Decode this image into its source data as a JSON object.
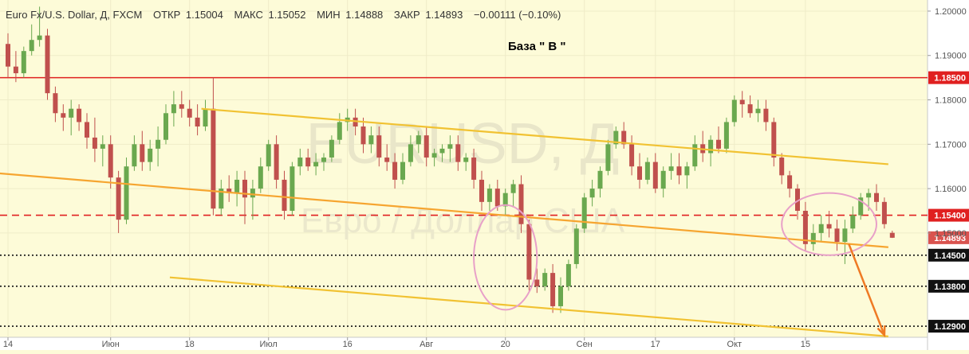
{
  "header": {
    "symbol": "Euro Fx/U.S. Dollar, Д, FXCM",
    "open_label": "ОТКР",
    "open": "1.15004",
    "high_label": "МАКС",
    "high": "1.15052",
    "low_label": "МИН",
    "low": "1.14888",
    "close_label": "ЗАКР",
    "close": "1.14893",
    "change": "−0.00111 (−0.10%)"
  },
  "annotation": "База \" В \"",
  "watermark": {
    "main": "EURUSD, Д",
    "sub": "Евро / Доллар США"
  },
  "colors": {
    "up": "#6aa84f",
    "down": "#c0504d",
    "resistance": "#e02020",
    "support": "#111111",
    "channel": "#f1c232",
    "trend": "#f6a530",
    "circle": "#e8a0c8",
    "arrow": "#ef7a24",
    "price_tag": "#d9534f"
  },
  "chart_data": {
    "type": "candlestick",
    "symbol": "Euro Fx/U.S. Dollar",
    "interval": "Д",
    "source": "FXCM",
    "ylim": [
      1.1265,
      1.2025
    ],
    "y_ticks": [
      1.2,
      1.19,
      1.18,
      1.17,
      1.16,
      1.15
    ],
    "y_tick_labels": [
      "1.20000",
      "1.19000",
      "1.18000",
      "1.17000",
      "1.16000",
      "1.15000"
    ],
    "x_tick_labels": [
      "14",
      "Июн",
      "18",
      "Июл",
      "16",
      "Авг",
      "20",
      "Сен",
      "17",
      "Окт",
      "15"
    ],
    "x_tick_index": [
      0,
      13,
      23,
      33,
      43,
      53,
      63,
      73,
      82,
      92,
      101
    ],
    "candles": [
      [
        1.1926,
        1.195,
        1.185,
        1.1875
      ],
      [
        1.1875,
        1.191,
        1.184,
        1.186
      ],
      [
        1.186,
        1.192,
        1.185,
        1.191
      ],
      [
        1.191,
        1.197,
        1.19,
        1.1935
      ],
      [
        1.1935,
        1.201,
        1.192,
        1.1945
      ],
      [
        1.1945,
        1.196,
        1.18,
        1.1815
      ],
      [
        1.1815,
        1.183,
        1.175,
        1.177
      ],
      [
        1.177,
        1.179,
        1.173,
        1.176
      ],
      [
        1.176,
        1.18,
        1.172,
        1.178
      ],
      [
        1.178,
        1.179,
        1.173,
        1.175
      ],
      [
        1.175,
        1.177,
        1.169,
        1.1715
      ],
      [
        1.1715,
        1.176,
        1.166,
        1.169
      ],
      [
        1.169,
        1.172,
        1.165,
        1.17
      ],
      [
        1.17,
        1.172,
        1.16,
        1.1625
      ],
      [
        1.1625,
        1.164,
        1.15,
        1.153
      ],
      [
        1.153,
        1.167,
        1.152,
        1.165
      ],
      [
        1.165,
        1.172,
        1.164,
        1.17
      ],
      [
        1.17,
        1.173,
        1.164,
        1.166
      ],
      [
        1.166,
        1.171,
        1.164,
        1.169
      ],
      [
        1.169,
        1.174,
        1.165,
        1.171
      ],
      [
        1.171,
        1.179,
        1.17,
        1.177
      ],
      [
        1.177,
        1.182,
        1.174,
        1.179
      ],
      [
        1.179,
        1.182,
        1.176,
        1.178
      ],
      [
        1.178,
        1.18,
        1.174,
        1.176
      ],
      [
        1.176,
        1.179,
        1.172,
        1.174
      ],
      [
        1.174,
        1.18,
        1.173,
        1.178
      ],
      [
        1.178,
        1.185,
        1.154,
        1.1555
      ],
      [
        1.1555,
        1.162,
        1.154,
        1.16
      ],
      [
        1.16,
        1.163,
        1.157,
        1.159
      ],
      [
        1.159,
        1.164,
        1.156,
        1.162
      ],
      [
        1.162,
        1.164,
        1.152,
        1.158
      ],
      [
        1.158,
        1.162,
        1.153,
        1.16
      ],
      [
        1.16,
        1.167,
        1.159,
        1.165
      ],
      [
        1.165,
        1.171,
        1.164,
        1.17
      ],
      [
        1.17,
        1.172,
        1.16,
        1.162
      ],
      [
        1.162,
        1.164,
        1.153,
        1.155
      ],
      [
        1.155,
        1.166,
        1.154,
        1.165
      ],
      [
        1.165,
        1.169,
        1.163,
        1.167
      ],
      [
        1.167,
        1.169,
        1.164,
        1.165
      ],
      [
        1.165,
        1.168,
        1.163,
        1.166
      ],
      [
        1.166,
        1.168,
        1.164,
        1.167
      ],
      [
        1.167,
        1.172,
        1.166,
        1.171
      ],
      [
        1.171,
        1.177,
        1.17,
        1.175
      ],
      [
        1.175,
        1.178,
        1.173,
        1.176
      ],
      [
        1.176,
        1.178,
        1.172,
        1.174
      ],
      [
        1.174,
        1.176,
        1.168,
        1.17
      ],
      [
        1.17,
        1.174,
        1.168,
        1.172
      ],
      [
        1.172,
        1.174,
        1.165,
        1.167
      ],
      [
        1.167,
        1.17,
        1.164,
        1.166
      ],
      [
        1.166,
        1.168,
        1.16,
        1.162
      ],
      [
        1.162,
        1.168,
        1.161,
        1.166
      ],
      [
        1.166,
        1.172,
        1.165,
        1.17
      ],
      [
        1.17,
        1.173,
        1.168,
        1.172
      ],
      [
        1.172,
        1.174,
        1.165,
        1.167
      ],
      [
        1.167,
        1.169,
        1.165,
        1.168
      ],
      [
        1.168,
        1.17,
        1.166,
        1.169
      ],
      [
        1.169,
        1.172,
        1.166,
        1.17
      ],
      [
        1.17,
        1.172,
        1.164,
        1.166
      ],
      [
        1.166,
        1.168,
        1.164,
        1.167
      ],
      [
        1.167,
        1.169,
        1.16,
        1.162
      ],
      [
        1.162,
        1.164,
        1.155,
        1.157
      ],
      [
        1.157,
        1.161,
        1.155,
        1.16
      ],
      [
        1.16,
        1.162,
        1.155,
        1.156
      ],
      [
        1.156,
        1.16,
        1.154,
        1.159
      ],
      [
        1.159,
        1.162,
        1.156,
        1.161
      ],
      [
        1.161,
        1.163,
        1.15,
        1.152
      ],
      [
        1.152,
        1.153,
        1.137,
        1.1395
      ],
      [
        1.1395,
        1.142,
        1.1365,
        1.138
      ],
      [
        1.138,
        1.142,
        1.137,
        1.141
      ],
      [
        1.141,
        1.143,
        1.132,
        1.1335
      ],
      [
        1.1335,
        1.14,
        1.132,
        1.138
      ],
      [
        1.138,
        1.144,
        1.137,
        1.143
      ],
      [
        1.143,
        1.152,
        1.142,
        1.151
      ],
      [
        1.151,
        1.159,
        1.15,
        1.158
      ],
      [
        1.158,
        1.162,
        1.156,
        1.16
      ],
      [
        1.16,
        1.165,
        1.158,
        1.164
      ],
      [
        1.164,
        1.171,
        1.163,
        1.17
      ],
      [
        1.17,
        1.174,
        1.169,
        1.173
      ],
      [
        1.173,
        1.175,
        1.169,
        1.17
      ],
      [
        1.17,
        1.172,
        1.163,
        1.165
      ],
      [
        1.165,
        1.168,
        1.16,
        1.162
      ],
      [
        1.162,
        1.167,
        1.161,
        1.166
      ],
      [
        1.166,
        1.168,
        1.159,
        1.16
      ],
      [
        1.16,
        1.165,
        1.158,
        1.164
      ],
      [
        1.164,
        1.168,
        1.162,
        1.165
      ],
      [
        1.165,
        1.168,
        1.161,
        1.163
      ],
      [
        1.163,
        1.166,
        1.16,
        1.165
      ],
      [
        1.165,
        1.172,
        1.164,
        1.17
      ],
      [
        1.17,
        1.173,
        1.166,
        1.168
      ],
      [
        1.168,
        1.172,
        1.165,
        1.171
      ],
      [
        1.171,
        1.174,
        1.168,
        1.169
      ],
      [
        1.169,
        1.176,
        1.168,
        1.175
      ],
      [
        1.175,
        1.181,
        1.174,
        1.18
      ],
      [
        1.18,
        1.182,
        1.176,
        1.179
      ],
      [
        1.179,
        1.181,
        1.176,
        1.177
      ],
      [
        1.177,
        1.18,
        1.175,
        1.178
      ],
      [
        1.178,
        1.18,
        1.173,
        1.175
      ],
      [
        1.175,
        1.176,
        1.165,
        1.167
      ],
      [
        1.167,
        1.168,
        1.161,
        1.163
      ],
      [
        1.163,
        1.164,
        1.158,
        1.16
      ],
      [
        1.16,
        1.161,
        1.153,
        1.155
      ],
      [
        1.155,
        1.157,
        1.146,
        1.1475
      ],
      [
        1.1475,
        1.152,
        1.146,
        1.15
      ],
      [
        1.15,
        1.154,
        1.148,
        1.152
      ],
      [
        1.152,
        1.155,
        1.149,
        1.151
      ],
      [
        1.151,
        1.153,
        1.146,
        1.148
      ],
      [
        1.148,
        1.153,
        1.143,
        1.151
      ],
      [
        1.151,
        1.156,
        1.15,
        1.154
      ],
      [
        1.154,
        1.159,
        1.153,
        1.158
      ],
      [
        1.158,
        1.16,
        1.155,
        1.159
      ],
      [
        1.159,
        1.161,
        1.155,
        1.157
      ],
      [
        1.157,
        1.158,
        1.151,
        1.152
      ],
      [
        1.15004,
        1.15052,
        1.14888,
        1.14893
      ]
    ],
    "levels": [
      {
        "price": 1.185,
        "label": "1.18500",
        "style": "solid",
        "color": "#e02020"
      },
      {
        "price": 1.154,
        "label": "1.15400",
        "style": "dashed",
        "color": "#e02020"
      },
      {
        "price": 1.145,
        "label": "1.14500",
        "style": "dotted",
        "color": "#111111"
      },
      {
        "price": 1.138,
        "label": "1.13800",
        "style": "dotted",
        "color": "#111111"
      },
      {
        "price": 1.129,
        "label": "1.12900",
        "style": "dotted",
        "color": "#111111"
      }
    ],
    "last_price": {
      "price": 1.14893,
      "label": "1.14893"
    },
    "channel_lines": [
      {
        "from": [
          24.5,
          1.178
        ],
        "to": [
          111.5,
          1.1655
        ],
        "color": "#f1c232"
      },
      {
        "from": [
          20.5,
          1.14
        ],
        "to": [
          111.5,
          1.1267
        ],
        "color": "#f1c232"
      },
      {
        "from": [
          -1.5,
          1.1635
        ],
        "to": [
          111.5,
          1.1468
        ],
        "color": "#f6a530"
      }
    ],
    "ellipses": [
      {
        "cx_index": 63,
        "cy_price": 1.1445,
        "rx_bars": 4,
        "ry_price": 0.0118
      },
      {
        "cx_index": 104,
        "cy_price": 1.152,
        "rx_bars": 6,
        "ry_price": 0.007
      }
    ],
    "arrow": {
      "from": [
        106.5,
        1.1475
      ],
      "to": [
        111,
        1.127
      ]
    },
    "grid": true
  }
}
